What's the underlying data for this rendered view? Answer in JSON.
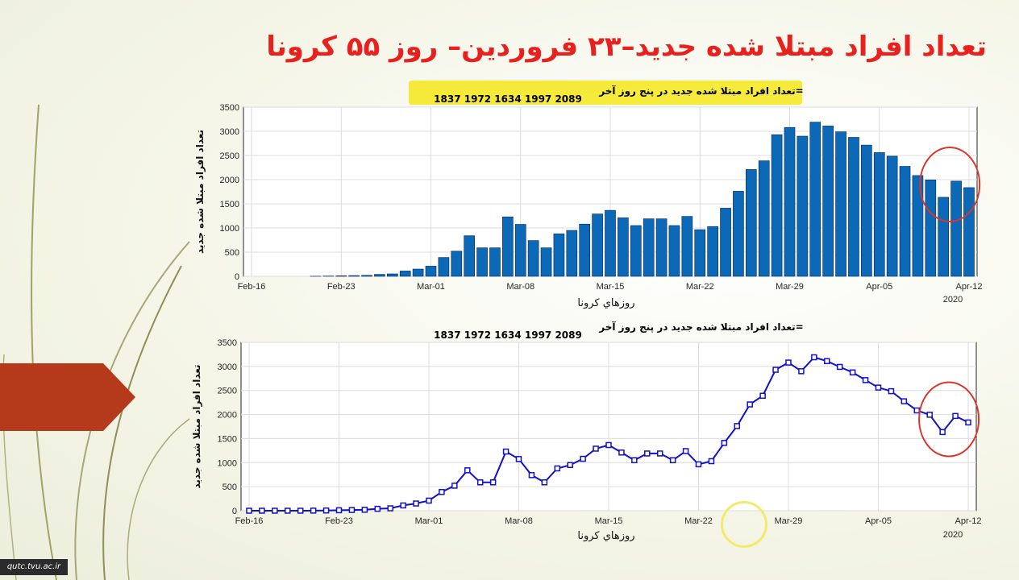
{
  "slide": {
    "title": "تعداد افراد مبتلا شده جدید–۲۳ فروردین– روز ۵۵ کرونا",
    "watermark": "qutc.tvu.ac.ir"
  },
  "colors": {
    "title": "#e8201e",
    "bar_fill": "#0b69b7",
    "line": "#1111c8",
    "annotation_circle": "#d9362b",
    "highlight": "#f5e61a",
    "arrow_tab": "#b5391b"
  },
  "chart_data": [
    {
      "type": "bar",
      "title_prefix": "تعداد افراد مبتلا شده جدید در پنج روز آخر=",
      "title_values": "1837   1972   1634   1997   2089",
      "ylabel": "تعداد افراد مبتلا شده جدید",
      "xlabel": "روزهاي كرونا",
      "year_label": "2020",
      "ylim": [
        0,
        3500
      ],
      "yticks": [
        "0",
        "500",
        "1000",
        "1500",
        "2000",
        "2500",
        "3000",
        "3500"
      ],
      "xticks": [
        "Feb-16",
        "Feb-23",
        "Mar-01",
        "Mar-08",
        "Mar-15",
        "Mar-22",
        "Mar-29",
        "Apr-05",
        "Apr-12"
      ],
      "grid": true,
      "title_highlighted": true,
      "annotation": "red ellipse around last four bars",
      "values": [
        0,
        0,
        0,
        0,
        0,
        2,
        5,
        10,
        15,
        20,
        40,
        50,
        110,
        150,
        210,
        390,
        520,
        840,
        590,
        590,
        1230,
        1075,
        740,
        590,
        880,
        950,
        1080,
        1290,
        1365,
        1210,
        1050,
        1190,
        1190,
        1050,
        1240,
        965,
        1030,
        1410,
        1760,
        2210,
        2390,
        2930,
        3080,
        2900,
        3190,
        3110,
        2990,
        2875,
        2715,
        2560,
        2485,
        2275,
        2085,
        1995,
        1635,
        1970,
        1835
      ]
    },
    {
      "type": "line",
      "title_prefix": "تعداد افراد مبتلا شده جدید در پنج روز آخر=",
      "title_values": "1837   1972   1634   1997   2089",
      "ylabel": "تعداد افراد مبتلا شده جدید",
      "xlabel": "روزهاي كرونا",
      "year_label": "2020",
      "ylim": [
        0,
        3500
      ],
      "yticks": [
        "0",
        "500",
        "1000",
        "1500",
        "2000",
        "2500",
        "3000",
        "3500"
      ],
      "xticks": [
        "Feb-16",
        "Feb-23",
        "Mar-01",
        "Mar-08",
        "Mar-15",
        "Mar-22",
        "Mar-29",
        "Apr-05",
        "Apr-12"
      ],
      "grid": true,
      "marker": "square",
      "annotation": "red ellipse around last four points",
      "values": [
        0,
        0,
        0,
        0,
        0,
        2,
        5,
        10,
        15,
        20,
        40,
        50,
        110,
        150,
        210,
        390,
        520,
        840,
        590,
        590,
        1230,
        1075,
        740,
        590,
        880,
        950,
        1080,
        1290,
        1365,
        1210,
        1050,
        1190,
        1190,
        1050,
        1240,
        965,
        1030,
        1410,
        1760,
        2210,
        2390,
        2930,
        3080,
        2900,
        3190,
        3110,
        2990,
        2875,
        2715,
        2560,
        2485,
        2275,
        2085,
        1995,
        1635,
        1970,
        1835
      ]
    }
  ]
}
